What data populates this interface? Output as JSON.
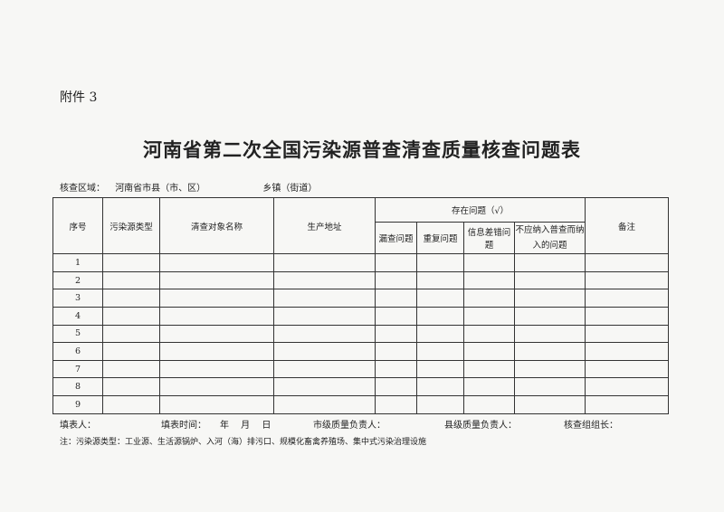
{
  "attachment": "附件 3",
  "title": "河南省第二次全国污染源普查清查质量核查问题表",
  "region": {
    "label": "核查区域：",
    "county": "河南省市县（市、区）",
    "town": "乡镇（街道）"
  },
  "table": {
    "headers": {
      "no": "序号",
      "type": "污染源类型",
      "name": "清查对象名称",
      "address": "生产地址",
      "issues": "存在问题（√）",
      "remarks": "备注"
    },
    "issue_cols": [
      "漏查问题",
      "重复问题",
      "信息差错问题",
      "不应纳入普查而纳入的问题"
    ],
    "rows": [
      "1",
      "2",
      "3",
      "4",
      "5",
      "6",
      "7",
      "8",
      "9"
    ]
  },
  "footer": {
    "filler": "填表人：",
    "date": "填表时间：　　年　 月　 日",
    "city": "市级质量负责人：",
    "county": "县级质量负责人：",
    "leader": "核查组组长："
  },
  "note": "注：污染源类型：工业源、生活源锅炉、入河（海）排污口、规模化畜禽养殖场、集中式污染治理设施"
}
